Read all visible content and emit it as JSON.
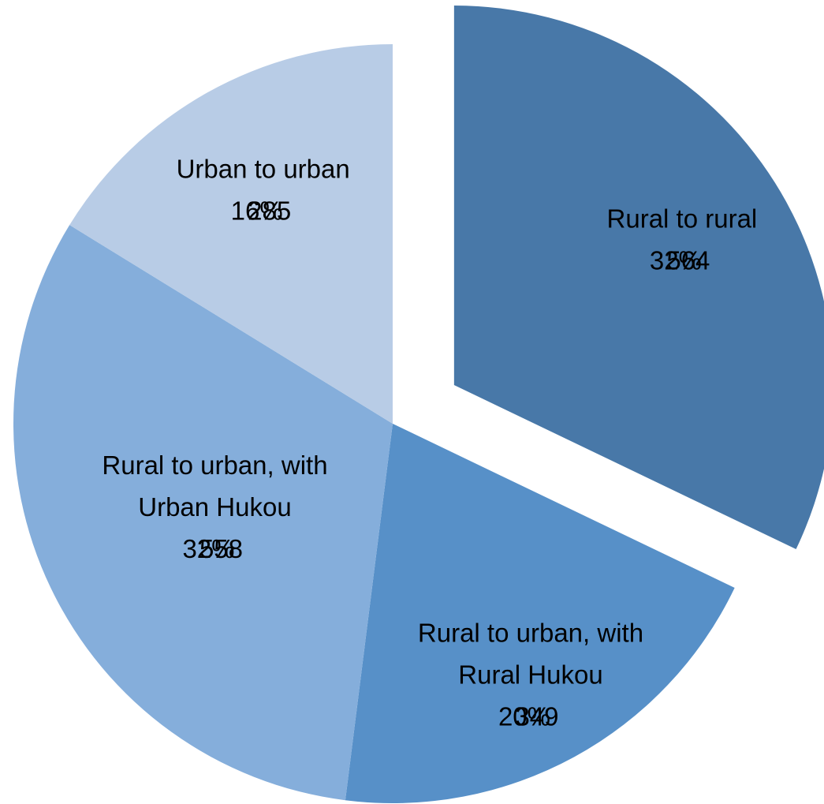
{
  "chart_data": {
    "type": "pie",
    "categories": [
      [
        "Rural to rural"
      ],
      [
        "Rural to urban, with",
        "Rural Hukou"
      ],
      [
        "Rural to urban, with",
        "Urban Hukou"
      ],
      [
        "Urban to urban"
      ]
    ],
    "values": [
      564,
      349,
      558,
      285
    ],
    "percent_labels": [
      "32%",
      "20%",
      "32%",
      "16%"
    ],
    "colors": [
      "#4878a8",
      "#5790c8",
      "#85aedb",
      "#b8cce6"
    ],
    "exploded": [
      true,
      false,
      false,
      false
    ]
  }
}
